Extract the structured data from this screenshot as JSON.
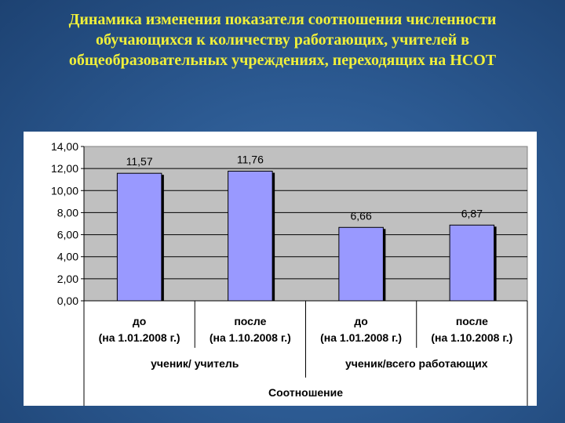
{
  "slide": {
    "title_lines": [
      "Динамика изменения показателя соотношения численности",
      "обучающихся к количеству  работающих, учителей в",
      "общеобразовательных учреждениях, переходящих на НСОТ"
    ]
  },
  "colors": {
    "title": "#f0f03a",
    "bar_fill": "#9999ff",
    "bar_stroke": "#000000",
    "plot_bg": "#c0c0c0"
  },
  "chart_data": {
    "type": "bar",
    "categories": [
      [
        "до",
        "(на 1.01.2008 г.)"
      ],
      [
        "после",
        "(на 1.10.2008 г.)"
      ],
      [
        "до",
        "(на 1.01.2008 г.)"
      ],
      [
        "после",
        "(на 1.10.2008 г.)"
      ]
    ],
    "groups": [
      "ученик/ учитель",
      "ученик/всего работающих"
    ],
    "axis_title": "Соотношение",
    "values": [
      11.57,
      11.76,
      6.66,
      6.87
    ],
    "data_labels": [
      "11,57",
      "11,76",
      "6,66",
      "6,87"
    ],
    "y_ticks": [
      "0,00",
      "2,00",
      "4,00",
      "6,00",
      "8,00",
      "10,00",
      "12,00",
      "14,00"
    ],
    "ylim": [
      0,
      14
    ],
    "grid": true,
    "legend": "none"
  }
}
